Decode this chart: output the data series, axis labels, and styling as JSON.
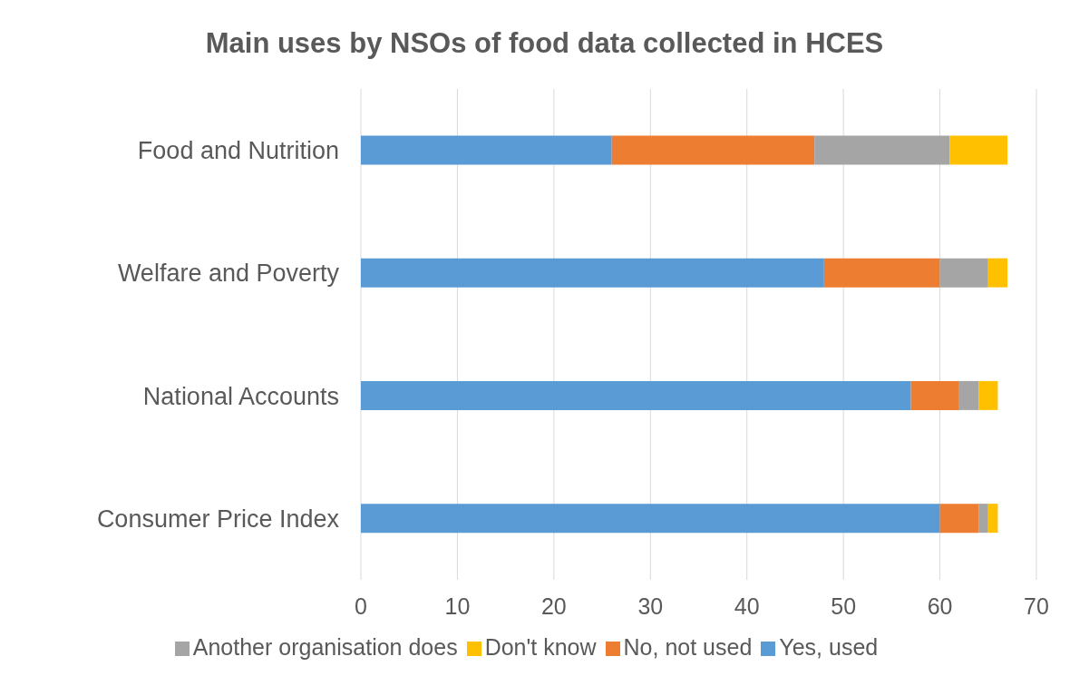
{
  "chart_data": {
    "type": "bar",
    "orientation": "horizontal",
    "stacked": true,
    "title": "Main uses by NSOs of food data collected in HCES",
    "categories": [
      "Food and Nutrition",
      "Welfare and Poverty",
      "National Accounts",
      "Consumer Price Index"
    ],
    "series": [
      {
        "name": "Yes, used",
        "color": "#5b9bd5",
        "values": [
          26,
          48,
          57,
          60
        ]
      },
      {
        "name": "No, not used",
        "color": "#ed7d31",
        "values": [
          21,
          12,
          5,
          4
        ]
      },
      {
        "name": "Another organisation does",
        "color": "#a5a5a5",
        "values": [
          14,
          5,
          2,
          1
        ]
      },
      {
        "name": "Don't know",
        "color": "#ffc000",
        "values": [
          6,
          2,
          2,
          1
        ]
      }
    ],
    "xlim": [
      0,
      70
    ],
    "xticks": [
      0,
      10,
      20,
      30,
      40,
      50,
      60,
      70
    ],
    "grid": "x",
    "legend": "bottom"
  }
}
